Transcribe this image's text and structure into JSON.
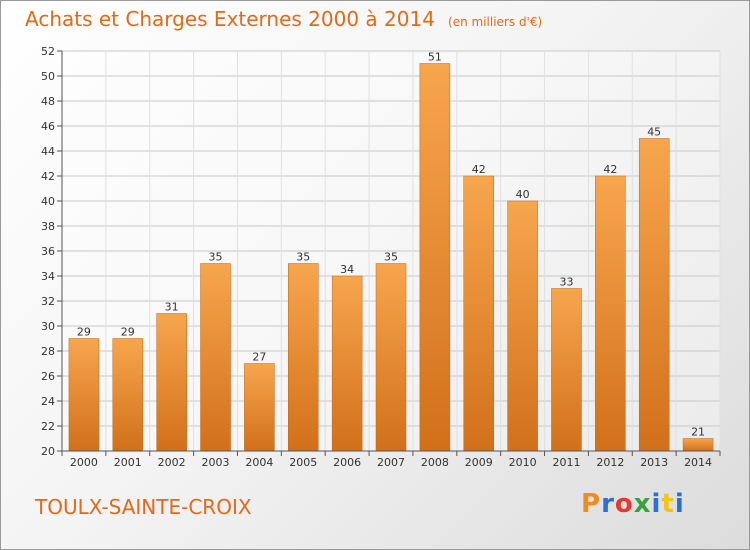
{
  "chart_data": {
    "type": "bar",
    "title": "Achats et Charges Externes 2000 à 2014",
    "unit": "(en milliers d'€)",
    "categories": [
      "2000",
      "2001",
      "2002",
      "2003",
      "2004",
      "2005",
      "2006",
      "2007",
      "2008",
      "2009",
      "2010",
      "2011",
      "2012",
      "2013",
      "2014"
    ],
    "values": [
      29,
      29,
      31,
      35,
      27,
      35,
      34,
      35,
      51,
      42,
      40,
      33,
      42,
      45,
      21
    ],
    "ylim": [
      20,
      52
    ],
    "yticks": [
      20,
      22,
      24,
      26,
      28,
      30,
      32,
      34,
      36,
      38,
      40,
      42,
      44,
      46,
      48,
      50,
      52
    ],
    "grid": true,
    "xlabel": "",
    "ylabel": "",
    "bar_color_top": "#f7a64e",
    "bar_color_bottom": "#d2701a",
    "title_color": "#e06a1a"
  },
  "location": {
    "name": "TOULX-SAINTE-CROIX"
  },
  "logo": {
    "text": "Proxiti",
    "letters": [
      "P",
      "r",
      "o",
      "x",
      "i",
      "t",
      "i"
    ],
    "colors": [
      "#f08c1e",
      "#2a6fd1",
      "#e8392b",
      "#3aa238",
      "#2a6fd1",
      "#f0c419",
      "#2a6fd1"
    ]
  }
}
